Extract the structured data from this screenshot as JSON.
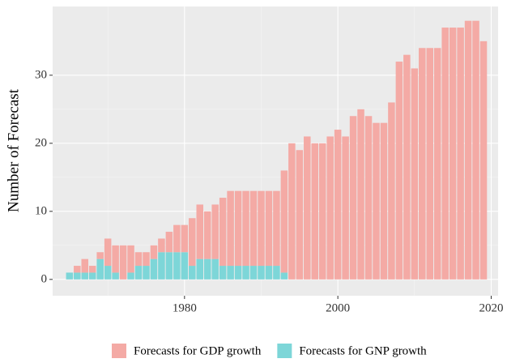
{
  "chart_data": {
    "type": "bar",
    "stacked": true,
    "y_label": "Number of Forecast",
    "x": [
      1965,
      1966,
      1967,
      1968,
      1969,
      1970,
      1971,
      1972,
      1973,
      1974,
      1975,
      1976,
      1977,
      1978,
      1979,
      1980,
      1981,
      1982,
      1983,
      1984,
      1985,
      1986,
      1987,
      1988,
      1989,
      1990,
      1991,
      1992,
      1993,
      1994,
      1995,
      1996,
      1997,
      1998,
      1999,
      2000,
      2001,
      2002,
      2003,
      2004,
      2005,
      2006,
      2007,
      2008,
      2009,
      2010,
      2011,
      2012,
      2013,
      2014,
      2015,
      2016,
      2017,
      2018,
      2019
    ],
    "series": [
      {
        "name": "Forecasts for GDP growth",
        "color": "#f4aaa5",
        "values": [
          0,
          1,
          2,
          1,
          1,
          4,
          4,
          5,
          4,
          2,
          2,
          2,
          2,
          3,
          4,
          4,
          7,
          8,
          7,
          8,
          10,
          11,
          11,
          11,
          11,
          11,
          11,
          11,
          15,
          20,
          19,
          21,
          20,
          20,
          21,
          22,
          21,
          24,
          25,
          24,
          23,
          23,
          26,
          32,
          33,
          31,
          34,
          34,
          34,
          37,
          37,
          37,
          38,
          38,
          35
        ]
      },
      {
        "name": "Forecasts for GNP growth",
        "color": "#7dd6d8",
        "values": [
          1,
          1,
          1,
          1,
          3,
          2,
          1,
          0,
          1,
          2,
          2,
          3,
          4,
          4,
          4,
          4,
          2,
          3,
          3,
          3,
          2,
          2,
          2,
          2,
          2,
          2,
          2,
          2,
          1,
          0,
          0,
          0,
          0,
          0,
          0,
          0,
          0,
          0,
          0,
          0,
          0,
          0,
          0,
          0,
          0,
          0,
          0,
          0,
          0,
          0,
          0,
          0,
          0,
          0,
          0
        ]
      }
    ],
    "xlim": [
      1962.8,
      2020.9
    ],
    "xticks": [
      1980,
      2000,
      2020
    ],
    "ylim": [
      -2.4,
      40.1
    ],
    "yticks": [
      0,
      10,
      20,
      30
    ],
    "grid": true,
    "legend": "bottom"
  }
}
